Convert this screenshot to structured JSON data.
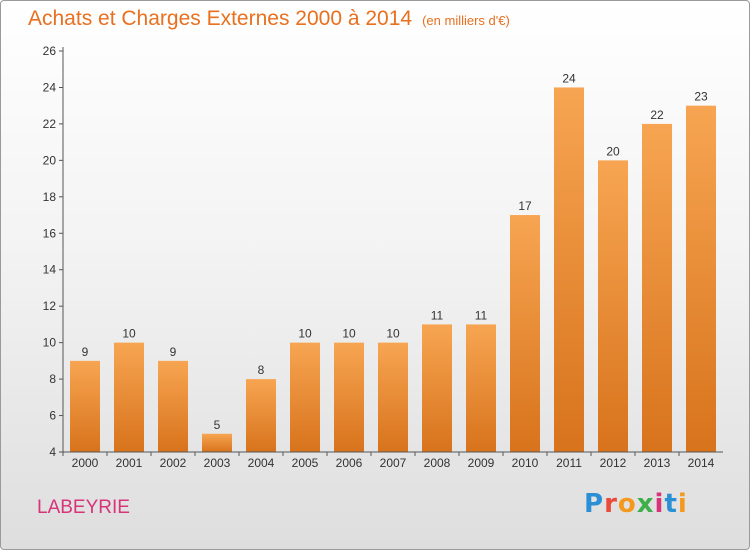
{
  "colors": {
    "title": "#e8701f",
    "commune": "#d8347a",
    "bar_light": "#f7a552",
    "bar_dark": "#d8731c",
    "axis": "#555555"
  },
  "header": {
    "title": "Achats et Charges Externes 2000 à 2014",
    "unit": "(en milliers d'€)"
  },
  "commune": "LABEYRIE",
  "logo": {
    "letters": [
      {
        "char": "P",
        "color": "#2a8fd4"
      },
      {
        "char": "r",
        "color": "#e94a3a"
      },
      {
        "char": "o",
        "color": "#f39a1e"
      },
      {
        "char": "x",
        "color": "#3db04a"
      },
      {
        "char": "i",
        "color": "#d8347a"
      },
      {
        "char": "t",
        "color": "#2a8fd4"
      },
      {
        "char": "i",
        "color": "#f39a1e"
      }
    ]
  },
  "chart_data": {
    "type": "bar",
    "title": "Achats et Charges Externes 2000 à 2014",
    "subtitle": "(en milliers d'€)",
    "xlabel": "",
    "ylabel": "",
    "categories": [
      "2000",
      "2001",
      "2002",
      "2003",
      "2004",
      "2005",
      "2006",
      "2007",
      "2008",
      "2009",
      "2010",
      "2011",
      "2012",
      "2013",
      "2014"
    ],
    "values": [
      9,
      10,
      9,
      5,
      8,
      10,
      10,
      10,
      11,
      11,
      17,
      24,
      20,
      22,
      23
    ],
    "ylim": [
      4,
      26
    ],
    "yticks": [
      4,
      6,
      8,
      10,
      12,
      14,
      16,
      18,
      20,
      22,
      24,
      26
    ],
    "grid": false,
    "legend": "none"
  }
}
